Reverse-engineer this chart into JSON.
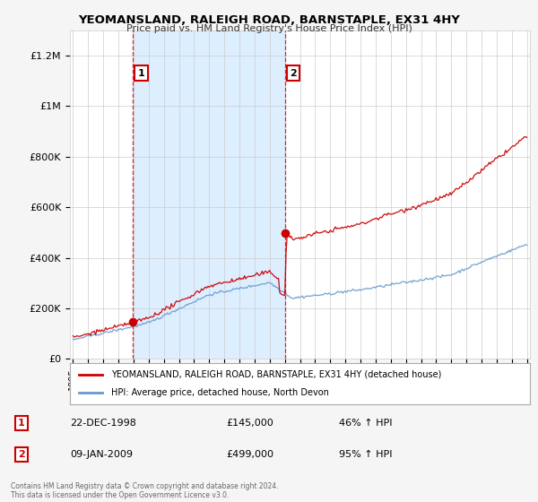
{
  "title": "YEOMANSLAND, RALEIGH ROAD, BARNSTAPLE, EX31 4HY",
  "subtitle": "Price paid vs. HM Land Registry's House Price Index (HPI)",
  "legend_line1": "YEOMANSLAND, RALEIGH ROAD, BARNSTAPLE, EX31 4HY (detached house)",
  "legend_line2": "HPI: Average price, detached house, North Devon",
  "footer": "Contains HM Land Registry data © Crown copyright and database right 2024.\nThis data is licensed under the Open Government Licence v3.0.",
  "sale1_label": "1",
  "sale1_date": "22-DEC-1998",
  "sale1_price": "£145,000",
  "sale1_hpi": "46% ↑ HPI",
  "sale1_year": 1998.97,
  "sale1_value": 145000,
  "sale2_label": "2",
  "sale2_date": "09-JAN-2009",
  "sale2_price": "£499,000",
  "sale2_hpi": "95% ↑ HPI",
  "sale2_year": 2009.03,
  "sale2_value": 499000,
  "red_color": "#cc0000",
  "blue_color": "#6699cc",
  "shade_color": "#ddeeff",
  "background_color": "#f5f5f5",
  "plot_bg_color": "#ffffff",
  "grid_color": "#cccccc",
  "ylim": [
    0,
    1300000
  ],
  "xlim": [
    1994.8,
    2025.2
  ],
  "yticks": [
    0,
    200000,
    400000,
    600000,
    800000,
    1000000,
    1200000
  ],
  "ytick_labels": [
    "£0",
    "£200K",
    "£400K",
    "£600K",
    "£800K",
    "£1M",
    "£1.2M"
  ]
}
